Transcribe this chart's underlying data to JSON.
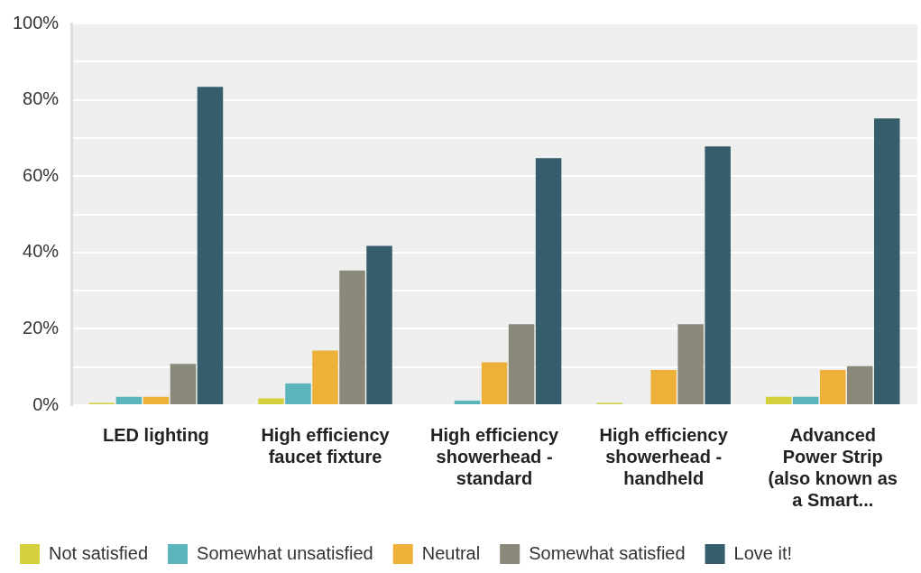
{
  "chart_data": {
    "type": "bar",
    "categories": [
      "LED lighting",
      "High efficiency faucet fixture",
      "High efficiency showerhead - standard",
      "High efficiency showerhead - handheld",
      "Advanced Power Strip (also known as a Smart..."
    ],
    "series": [
      {
        "name": "Not satisfied",
        "color": "#d4cf3c",
        "values": [
          0.6,
          1.8,
          0,
          0.6,
          2.2
        ]
      },
      {
        "name": "Somewhat unsatisfied",
        "color": "#5bb5bd",
        "values": [
          2.2,
          5.7,
          1.2,
          0,
          2.2
        ]
      },
      {
        "name": "Neutral",
        "color": "#edb038",
        "values": [
          2.2,
          14.3,
          11.2,
          9.2,
          9.2
        ]
      },
      {
        "name": "Somewhat satisfied",
        "color": "#8a8878",
        "values": [
          10.8,
          35.3,
          21.2,
          21.2,
          10.2
        ]
      },
      {
        "name": "Love it!",
        "color": "#365d6b",
        "values": [
          83.4,
          41.7,
          64.7,
          67.8,
          75.1
        ]
      }
    ],
    "ylim": [
      0,
      100
    ],
    "yticks": [
      {
        "value": 0,
        "label": "0%"
      },
      {
        "value": 10,
        "label": null
      },
      {
        "value": 20,
        "label": "20%"
      },
      {
        "value": 30,
        "label": null
      },
      {
        "value": 40,
        "label": "40%"
      },
      {
        "value": 50,
        "label": null
      },
      {
        "value": 60,
        "label": "60%"
      },
      {
        "value": 70,
        "label": null
      },
      {
        "value": 80,
        "label": "80%"
      },
      {
        "value": 90,
        "label": null
      },
      {
        "value": 100,
        "label": "100%"
      }
    ],
    "grid": "y",
    "legend": "bottom"
  }
}
